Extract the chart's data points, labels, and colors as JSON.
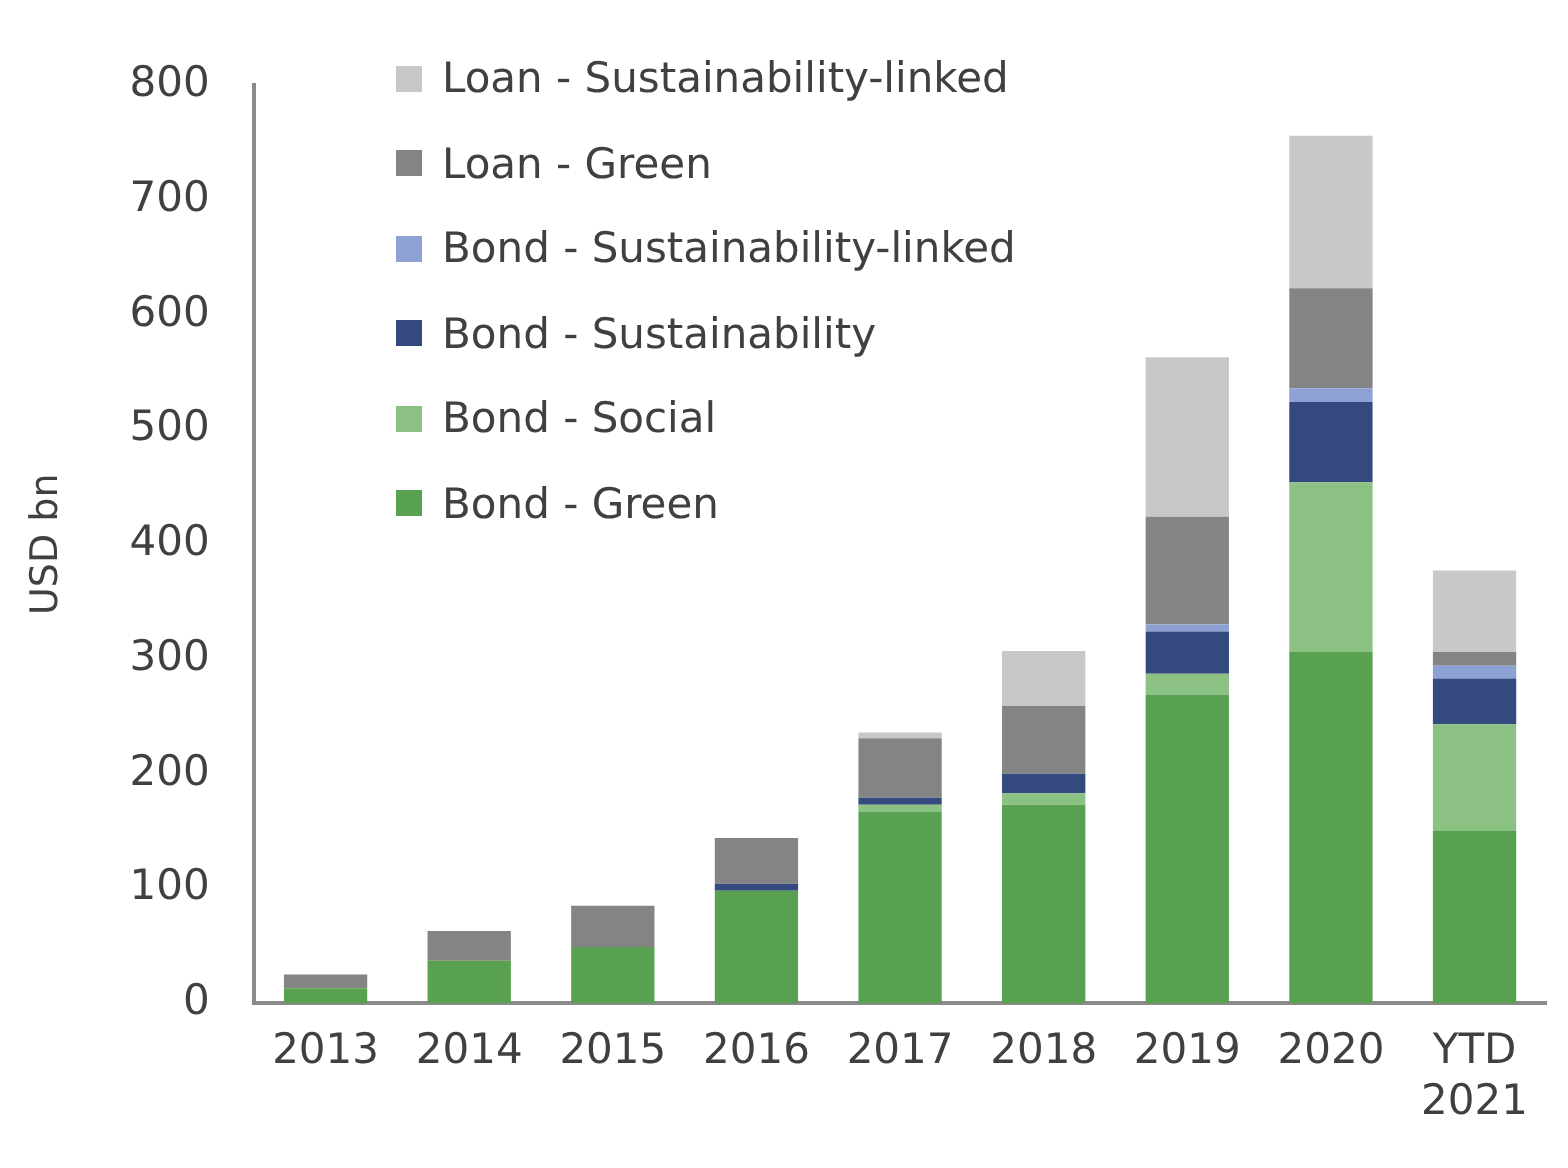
{
  "chart_data": {
    "type": "bar",
    "stacked": true,
    "ylabel": "USD bn",
    "categories": [
      "2013",
      "2014",
      "2015",
      "2016",
      "2017",
      "2018",
      "2019",
      "2020",
      "YTD 2021"
    ],
    "series": [
      {
        "name": "Bond - Green",
        "color": "#58a150",
        "values": [
          13,
          37,
          49,
          98,
          167,
          173,
          269,
          306,
          150
        ]
      },
      {
        "name": "Bond - Social",
        "color": "#8bc182",
        "values": [
          0,
          0,
          0,
          0,
          6,
          10,
          18,
          148,
          93
        ]
      },
      {
        "name": "Bond - Sustainability",
        "color": "#344a7e",
        "values": [
          0,
          0,
          0,
          6,
          6,
          17,
          37,
          70,
          40
        ]
      },
      {
        "name": "Bond - Sustainability-linked",
        "color": "#8ea1d4",
        "values": [
          0,
          0,
          0,
          0,
          0,
          0,
          6,
          12,
          11
        ]
      },
      {
        "name": "Loan - Green",
        "color": "#848484",
        "values": [
          12,
          26,
          36,
          40,
          52,
          59,
          94,
          87,
          12
        ]
      },
      {
        "name": "Loan - Sustainability-linked",
        "color": "#c8c8c8",
        "values": [
          0,
          0,
          0,
          0,
          5,
          48,
          139,
          133,
          71
        ]
      }
    ],
    "ylim": [
      0,
      800
    ],
    "yticks": [
      0,
      100,
      200,
      300,
      400,
      500,
      600,
      700,
      800
    ],
    "grid": false,
    "legend": "top left"
  }
}
